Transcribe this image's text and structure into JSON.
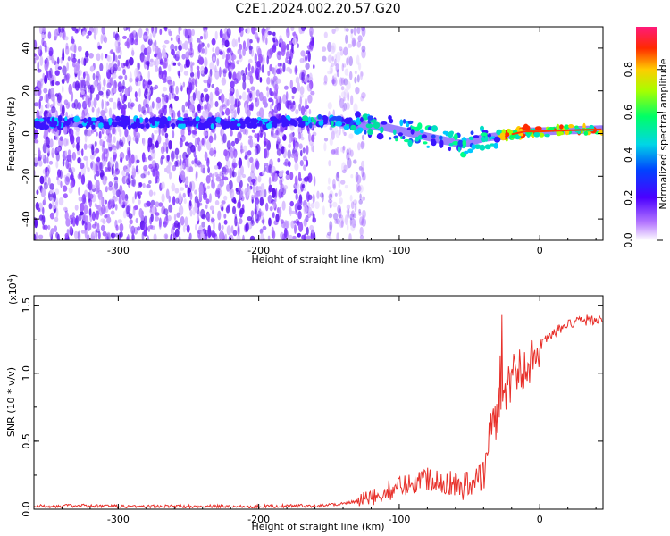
{
  "title": "C2E1.2024.002.20.57.G20",
  "chart_data": [
    {
      "type": "heatmap",
      "xlabel": "Height of straight line (km)",
      "ylabel": "Frequency (Hz)",
      "xlim": [
        -360,
        45
      ],
      "ylim": [
        -50,
        50
      ],
      "xticks": [
        -300,
        -200,
        -100,
        0
      ],
      "yticks": [
        -40,
        -20,
        0,
        20,
        40
      ],
      "colorbar": {
        "label": "Normalized spectral amplitude",
        "range": [
          0.0,
          1.0
        ],
        "ticks": [
          0.0,
          0.2,
          0.4,
          0.6,
          0.8
        ],
        "tick_labels": [
          "0.0",
          "0.2",
          "0.4",
          "0.6",
          "0.8"
        ],
        "colormap": "rainbow"
      },
      "ridge": {
        "x": [
          -355,
          -320,
          -280,
          -240,
          -200,
          -170,
          -150,
          -130,
          -110,
          -90,
          -70,
          -55,
          -40,
          -25,
          -10,
          0,
          20,
          45
        ],
        "frequency": [
          5,
          5,
          5,
          5,
          5,
          5.5,
          6,
          4,
          3,
          0,
          -3,
          -5,
          -2,
          -1,
          1,
          1,
          1.5,
          2
        ]
      }
    },
    {
      "type": "line",
      "xlabel": "Height of straight line (km)",
      "ylabel": "SNR (10 * v/v)",
      "scale_label": "(x10^4)",
      "scale_base": "(x10",
      "scale_exp": "4",
      "scale_close": ")",
      "xlim": [
        -360,
        45
      ],
      "ylim": [
        0,
        1.57
      ],
      "xticks": [
        -300,
        -200,
        -100,
        0
      ],
      "yticks": [
        0.0,
        0.5,
        1.0,
        1.5
      ],
      "ytick_labels": [
        "0.0",
        "0.5",
        "1.0",
        "1.5"
      ],
      "series": [
        {
          "color": "#e8302a",
          "x": [
            -360,
            -330,
            -300,
            -250,
            -200,
            -160,
            -140,
            -120,
            -110,
            -100,
            -90,
            -80,
            -70,
            -60,
            -50,
            -40,
            -35,
            -30,
            -25,
            -20,
            -15,
            -10,
            -5,
            0,
            10,
            20,
            30,
            45
          ],
          "y": [
            0.02,
            0.025,
            0.02,
            0.02,
            0.02,
            0.025,
            0.04,
            0.07,
            0.12,
            0.16,
            0.19,
            0.22,
            0.21,
            0.17,
            0.16,
            0.25,
            0.55,
            0.7,
            0.85,
            0.95,
            1.0,
            1.05,
            1.1,
            1.2,
            1.3,
            1.35,
            1.38,
            1.4
          ]
        }
      ]
    }
  ]
}
